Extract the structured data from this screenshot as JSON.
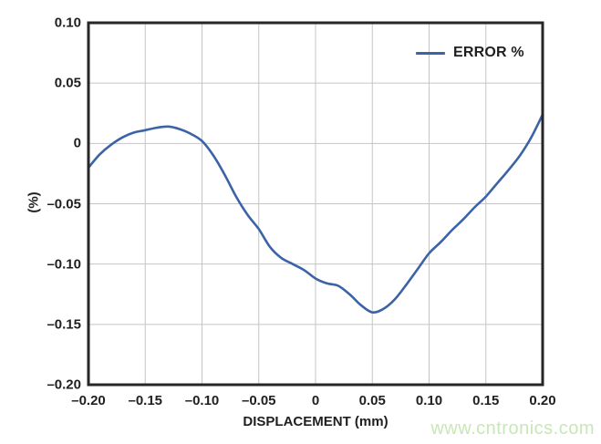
{
  "watermark": "www.cntronics.com",
  "colors": {
    "background": "#ffffff",
    "line": "#3b63a6",
    "grid": "#c5c5c5",
    "axis_border": "#262626",
    "text": "#1f1f1f",
    "watermark": "#c9e7b6"
  },
  "chart_data": {
    "type": "line",
    "title": "",
    "xlabel": "DISPLACEMENT (mm)",
    "ylabel": "(%)",
    "xlim": [
      -0.2,
      0.2
    ],
    "ylim": [
      -0.2,
      0.1
    ],
    "grid": true,
    "legend_position": "top-right",
    "x_ticks": [
      -0.2,
      -0.15,
      -0.1,
      -0.05,
      0,
      0.05,
      0.1,
      0.15,
      0.2
    ],
    "x_tick_labels": [
      "–0.20",
      "–0.15",
      "–0.10",
      "–0.05",
      "0",
      "0.05",
      "0.10",
      "0.15",
      "0.20"
    ],
    "y_ticks": [
      0.1,
      0.05,
      0,
      -0.05,
      -0.1,
      -0.15,
      -0.2
    ],
    "y_tick_labels": [
      "0.10",
      "0.05",
      "0",
      "–0.05",
      "–0.10",
      "–0.15",
      "–0.20"
    ],
    "series": [
      {
        "name": "ERROR %",
        "x": [
          -0.2,
          -0.19,
          -0.18,
          -0.17,
          -0.16,
          -0.15,
          -0.14,
          -0.13,
          -0.12,
          -0.11,
          -0.1,
          -0.09,
          -0.08,
          -0.07,
          -0.06,
          -0.05,
          -0.04,
          -0.03,
          -0.02,
          -0.01,
          0.0,
          0.01,
          0.02,
          0.03,
          0.04,
          0.05,
          0.06,
          0.07,
          0.08,
          0.09,
          0.1,
          0.11,
          0.12,
          0.13,
          0.14,
          0.15,
          0.16,
          0.17,
          0.18,
          0.19,
          0.2
        ],
        "y": [
          -0.02,
          -0.009,
          -0.001,
          0.005,
          0.009,
          0.011,
          0.013,
          0.014,
          0.012,
          0.008,
          0.002,
          -0.01,
          -0.026,
          -0.044,
          -0.059,
          -0.071,
          -0.086,
          -0.095,
          -0.1,
          -0.105,
          -0.112,
          -0.116,
          -0.118,
          -0.125,
          -0.134,
          -0.14,
          -0.137,
          -0.129,
          -0.117,
          -0.104,
          -0.091,
          -0.082,
          -0.072,
          -0.063,
          -0.053,
          -0.044,
          -0.033,
          -0.022,
          -0.01,
          0.005,
          0.024
        ]
      }
    ]
  }
}
